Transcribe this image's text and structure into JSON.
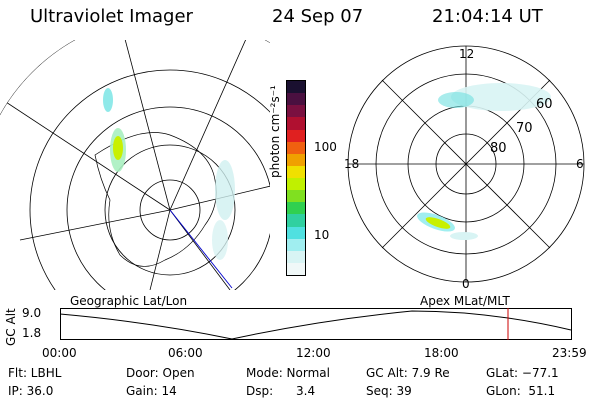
{
  "header": {
    "instrument": "Ultraviolet Imager",
    "date": "24 Sep 07",
    "time": "21:04:14 UT"
  },
  "left_panel": {
    "label": "Geographic Lat/Lon"
  },
  "right_panel": {
    "label": "Apex MLat/MLT",
    "lat_labels": [
      "60",
      "70",
      "80"
    ],
    "mlt_labels": {
      "top": "12",
      "left": "18",
      "right": "6",
      "bottom": "0"
    }
  },
  "colorbar": {
    "unit_label": "photon cm⁻²s⁻¹",
    "tick_labels": [
      "100",
      "10"
    ],
    "colors_top_to_bottom": [
      "#1a1030",
      "#4a1040",
      "#7a1040",
      "#b01030",
      "#e02020",
      "#f06010",
      "#f0a000",
      "#f0e000",
      "#c0f000",
      "#80e020",
      "#30d050",
      "#30d0a0",
      "#50e0e0",
      "#a0eef0",
      "#d8f4f4",
      "#f0f8f8"
    ]
  },
  "altitude_plot": {
    "ylabel": "GC Alt",
    "y_ticks": [
      "9.0",
      "1.8"
    ],
    "x_ticks": [
      "00:00",
      "06:00",
      "12:00",
      "18:00",
      "23:59"
    ],
    "marker_time": "21:04",
    "marker_color": "#cc0000"
  },
  "info": {
    "row1": {
      "flt": "Flt: LBHL",
      "door": "Door: Open",
      "mode": "Mode: Normal",
      "gcalt": "GC Alt: 7.9 Re",
      "glat": "GLat: −77.1"
    },
    "row2": {
      "ip": "IP: 36.0",
      "gain": "Gain: 14",
      "dsp": "Dsp:      3.4",
      "seq": "Seq: 39",
      "glon": "GLon:  51.1"
    }
  }
}
